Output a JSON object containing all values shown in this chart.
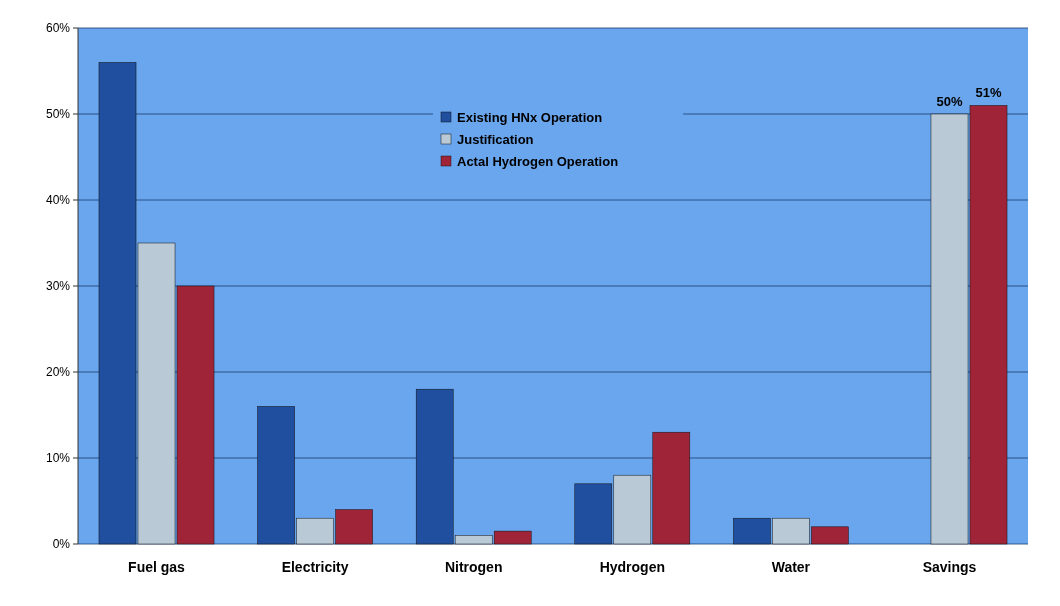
{
  "chart_data": {
    "type": "bar",
    "categories": [
      "Fuel gas",
      "Electricity",
      "Nitrogen",
      "Hydrogen",
      "Water",
      "Savings"
    ],
    "series": [
      {
        "name": "Existing HNx Operation",
        "color": "#1f4f9e",
        "values": [
          56,
          16,
          18,
          7,
          3,
          0
        ]
      },
      {
        "name": "Justification",
        "color": "#b9c9d6",
        "values": [
          35,
          3,
          1,
          8,
          3,
          50
        ],
        "value_labels": [
          null,
          null,
          null,
          null,
          null,
          "50%"
        ]
      },
      {
        "name": "Actal Hydrogen Operation",
        "color": "#a02438",
        "values": [
          30,
          4,
          1.5,
          13,
          2,
          51
        ],
        "value_labels": [
          null,
          null,
          null,
          null,
          null,
          "51%"
        ]
      }
    ],
    "ylim": [
      0,
      60
    ],
    "yticks": [
      {
        "value": 0,
        "label": "0%"
      },
      {
        "value": 10,
        "label": "10%"
      },
      {
        "value": 20,
        "label": "20%"
      },
      {
        "value": 30,
        "label": "30%"
      },
      {
        "value": 40,
        "label": "40%"
      },
      {
        "value": 50,
        "label": "50%"
      },
      {
        "value": 60,
        "label": "60%"
      }
    ],
    "grid": "y",
    "legend": "top"
  }
}
